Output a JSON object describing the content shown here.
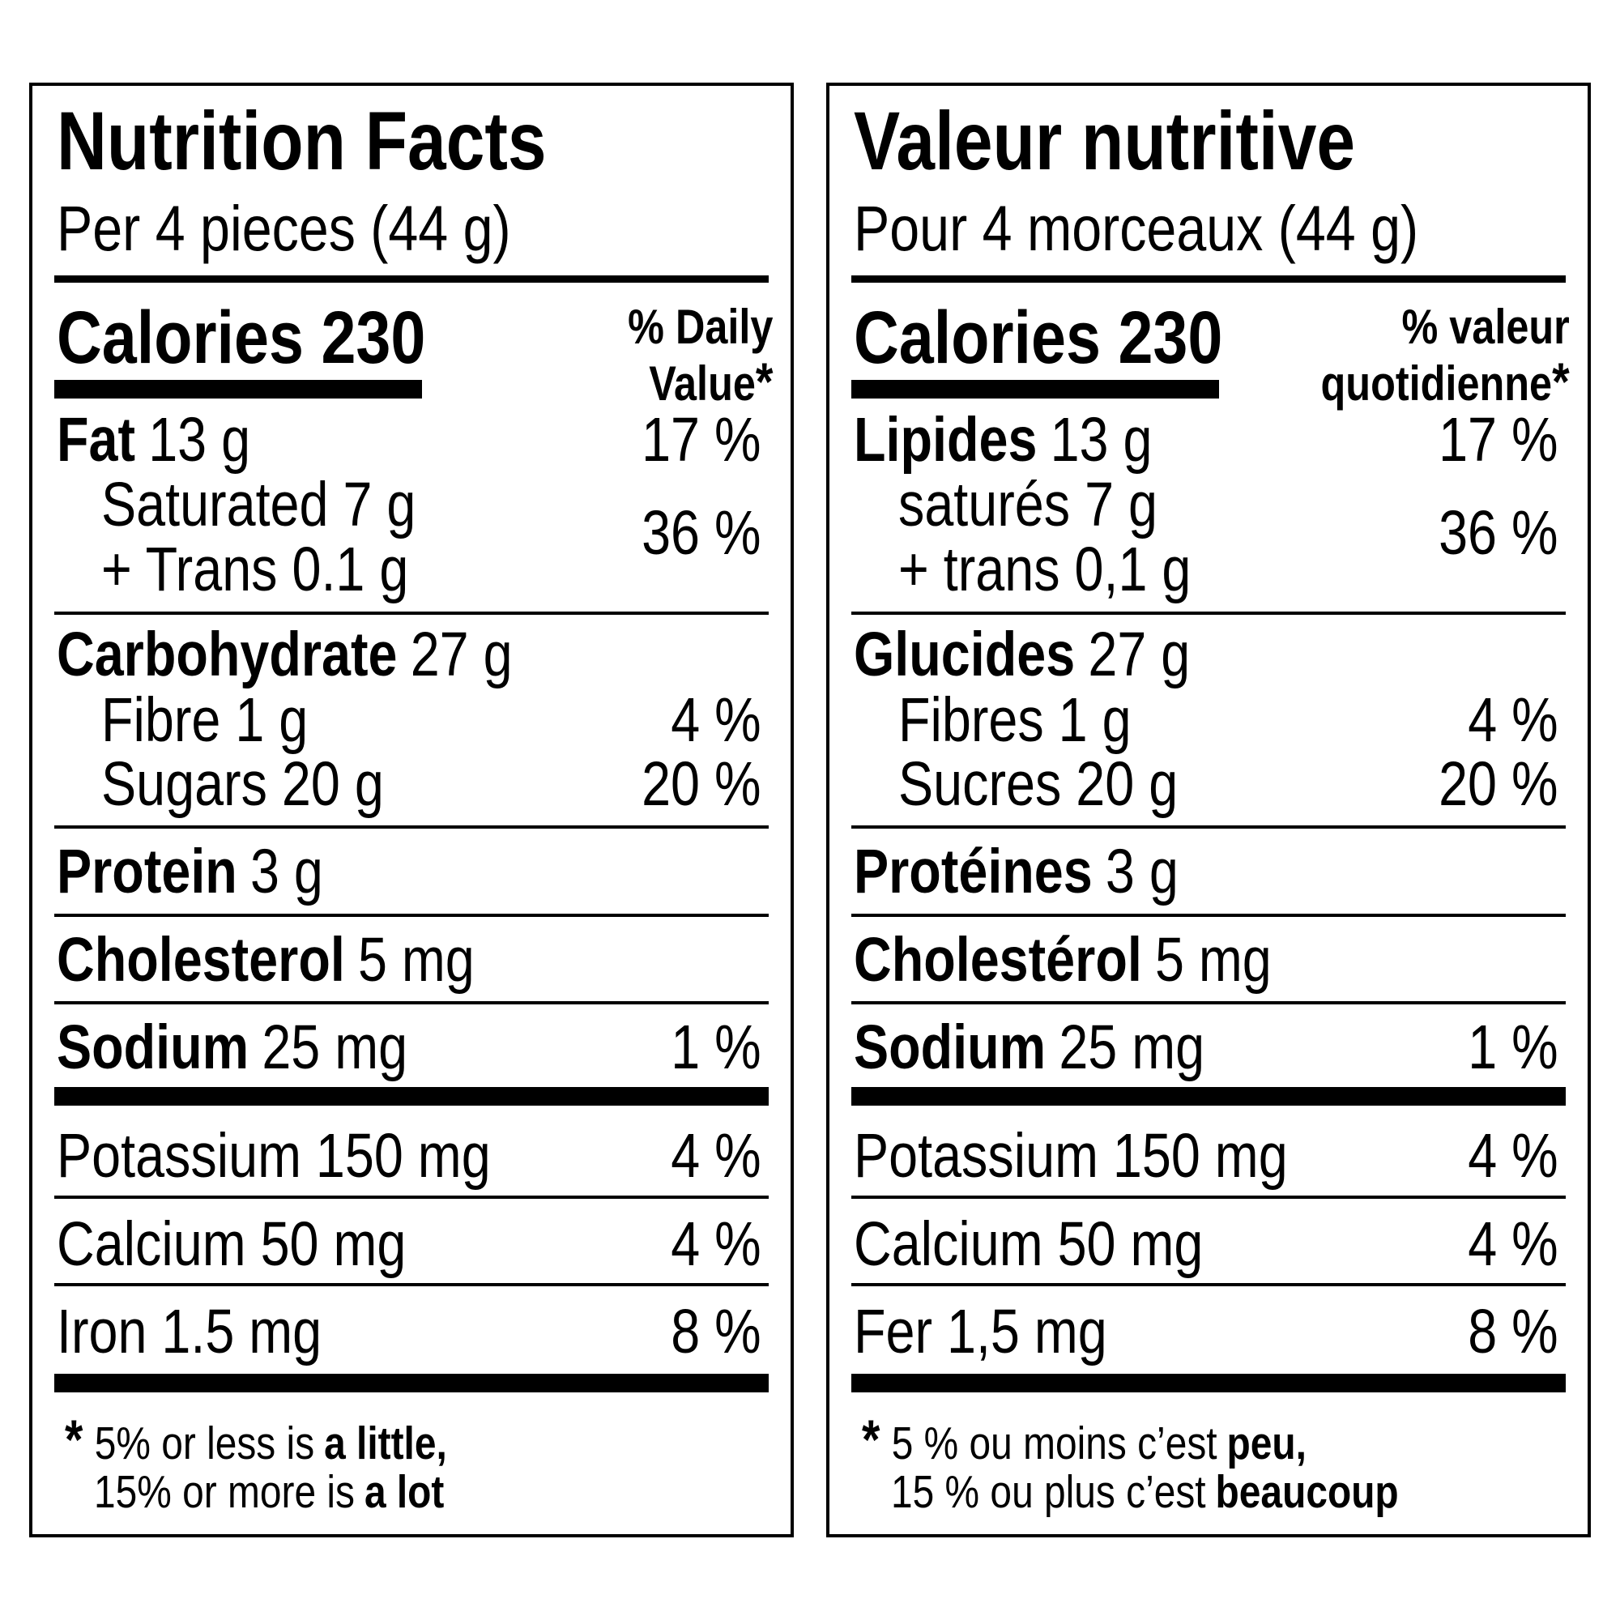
{
  "panels": [
    {
      "title": "Nutrition Facts",
      "serving": "Per 4 pieces (44 g)",
      "calories": "Calories 230",
      "dv_header": [
        "% Daily",
        "Value"
      ],
      "asterisk": "*",
      "fat": {
        "name": "Fat",
        "amount": "13 g",
        "dv": "17 %"
      },
      "saturated": "Saturated 7 g",
      "trans": "+ Trans 0.1 g",
      "saturated_trans_dv": "36 %",
      "carbohydrate": {
        "name": "Carbohydrate",
        "amount": "27 g"
      },
      "fibre": {
        "text": "Fibre 1 g",
        "dv": "4 %"
      },
      "sugars": {
        "text": "Sugars 20 g",
        "dv": "20 %"
      },
      "protein": {
        "name": "Protein",
        "amount": "3 g"
      },
      "cholesterol": {
        "name": "Cholesterol",
        "amount": "5 mg"
      },
      "sodium": {
        "name": "Sodium",
        "amount": "25 mg",
        "dv": "1 %"
      },
      "potassium": {
        "text": "Potassium 150 mg",
        "dv": "4 %"
      },
      "calcium": {
        "text": "Calcium 50 mg",
        "dv": "4 %"
      },
      "iron": {
        "text": "Iron 1.5 mg",
        "dv": "8 %"
      },
      "footnote": [
        [
          {
            "text": "5% or less is"
          },
          {
            "text": "a little,",
            "bold": true
          }
        ],
        [
          {
            "text": "15% or more is"
          },
          {
            "text": "a lot",
            "bold": true
          }
        ]
      ]
    },
    {
      "title": "Valeur nutritive",
      "serving": "Pour 4 morceaux (44 g)",
      "calories": "Calories 230",
      "dv_header": [
        "% valeur",
        "quotidienne"
      ],
      "asterisk": "*",
      "fat": {
        "name": "Lipides",
        "amount": "13 g",
        "dv": "17 %"
      },
      "saturated": "saturés 7 g",
      "trans": "+ trans 0,1 g",
      "saturated_trans_dv": "36 %",
      "carbohydrate": {
        "name": "Glucides",
        "amount": "27 g"
      },
      "fibre": {
        "text": "Fibres 1 g",
        "dv": "4 %"
      },
      "sugars": {
        "text": "Sucres 20 g",
        "dv": "20 %"
      },
      "protein": {
        "name": "Protéines",
        "amount": "3 g"
      },
      "cholesterol": {
        "name": "Cholestérol",
        "amount": "5 mg"
      },
      "sodium": {
        "name": "Sodium",
        "amount": "25 mg",
        "dv": "1 %"
      },
      "potassium": {
        "text": "Potassium 150 mg",
        "dv": "4 %"
      },
      "calcium": {
        "text": "Calcium 50 mg",
        "dv": "4 %"
      },
      "iron": {
        "text": "Fer 1,5 mg",
        "dv": "8 %"
      },
      "footnote": [
        [
          {
            "text": "5 % ou moins c’est"
          },
          {
            "text": "peu,",
            "bold": true
          }
        ],
        [
          {
            "text": "15 % ou plus c’est"
          },
          {
            "text": "beaucoup",
            "bold": true
          }
        ]
      ]
    }
  ]
}
